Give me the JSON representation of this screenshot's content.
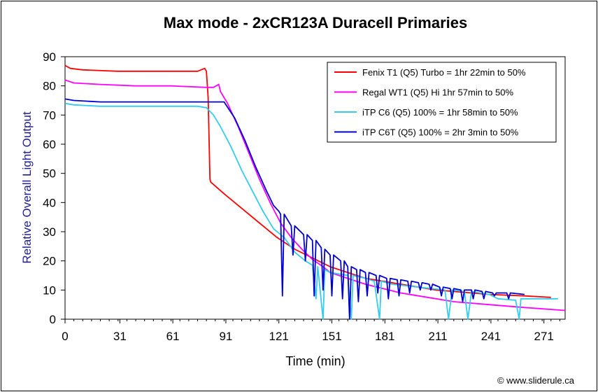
{
  "chart_data": {
    "type": "line",
    "title": "Max mode - 2xCR123A Duracell Primaries",
    "xlabel": "Time (min)",
    "ylabel": "Relative Overall Light Output",
    "xlim": [
      0,
      283
    ],
    "ylim": [
      0,
      90
    ],
    "x_ticks": [
      0,
      31,
      61,
      91,
      121,
      151,
      181,
      211,
      241,
      271
    ],
    "y_ticks": [
      0,
      10,
      20,
      30,
      40,
      50,
      60,
      70,
      80,
      90
    ],
    "grid": false,
    "legend_position": "top-right",
    "credit": "© www.sliderule.ca",
    "series": [
      {
        "name": "Fenix T1 (Q5) Turbo = 1hr 22min to 50%",
        "color": "#ff0000",
        "points": [
          [
            0,
            87
          ],
          [
            3,
            86
          ],
          [
            10,
            85.5
          ],
          [
            30,
            85
          ],
          [
            60,
            85
          ],
          [
            75,
            85
          ],
          [
            79,
            86
          ],
          [
            80,
            85
          ],
          [
            81,
            76
          ],
          [
            82,
            48
          ],
          [
            82.5,
            47
          ],
          [
            90,
            43
          ],
          [
            100,
            38
          ],
          [
            110,
            33
          ],
          [
            120,
            28
          ],
          [
            130,
            24
          ],
          [
            140,
            21
          ],
          [
            150,
            18
          ],
          [
            160,
            16
          ],
          [
            170,
            14
          ],
          [
            180,
            13
          ],
          [
            190,
            12
          ],
          [
            200,
            11
          ],
          [
            210,
            10
          ],
          [
            220,
            9.5
          ],
          [
            240,
            8.5
          ],
          [
            260,
            8
          ],
          [
            275,
            7.5
          ]
        ]
      },
      {
        "name": "Regal WT1 (Q5) Hi  1hr 57min to 50%",
        "color": "#ff00ff",
        "points": [
          [
            0,
            82
          ],
          [
            5,
            81
          ],
          [
            20,
            80.5
          ],
          [
            40,
            80
          ],
          [
            60,
            80
          ],
          [
            80,
            79.5
          ],
          [
            84,
            79.5
          ],
          [
            87,
            80.5
          ],
          [
            88,
            78
          ],
          [
            92,
            74
          ],
          [
            98,
            66
          ],
          [
            104,
            57
          ],
          [
            110,
            48
          ],
          [
            116,
            40
          ],
          [
            122,
            33
          ],
          [
            128,
            28
          ],
          [
            134,
            24
          ],
          [
            140,
            20.5
          ],
          [
            146,
            18
          ],
          [
            150,
            16
          ],
          [
            160,
            14
          ],
          [
            170,
            12
          ],
          [
            180,
            10.5
          ],
          [
            190,
            9
          ],
          [
            200,
            8
          ],
          [
            210,
            7
          ],
          [
            220,
            6
          ],
          [
            240,
            5
          ],
          [
            260,
            4
          ],
          [
            283,
            3
          ]
        ]
      },
      {
        "name": "iTP C6 (Q5) 100% = 1hr 58min to 50%",
        "color": "#33ccee",
        "points": [
          [
            0,
            74
          ],
          [
            5,
            73.5
          ],
          [
            20,
            73
          ],
          [
            40,
            73
          ],
          [
            60,
            73
          ],
          [
            75,
            73
          ],
          [
            80,
            72.5
          ],
          [
            84,
            70
          ],
          [
            88,
            66
          ],
          [
            94,
            59
          ],
          [
            100,
            51
          ],
          [
            106,
            44
          ],
          [
            112,
            37
          ],
          [
            118,
            31
          ],
          [
            124,
            28
          ],
          [
            130,
            23
          ],
          [
            136,
            20
          ],
          [
            140,
            18.5
          ],
          [
            142,
            7
          ],
          [
            143,
            18
          ],
          [
            146,
            0
          ],
          [
            147,
            17
          ],
          [
            150,
            16
          ],
          [
            160,
            15
          ],
          [
            162,
            0
          ],
          [
            163,
            15
          ],
          [
            170,
            14
          ],
          [
            175,
            13
          ],
          [
            178,
            0
          ],
          [
            179,
            13
          ],
          [
            185,
            12
          ],
          [
            200,
            11
          ],
          [
            215,
            10
          ],
          [
            217,
            0
          ],
          [
            219,
            10
          ],
          [
            226,
            9.5
          ],
          [
            228,
            0
          ],
          [
            230,
            9.5
          ],
          [
            240,
            8.5
          ],
          [
            245,
            7
          ],
          [
            255,
            6.5
          ],
          [
            257,
            0
          ],
          [
            258,
            7
          ],
          [
            270,
            7
          ],
          [
            279,
            7
          ]
        ]
      },
      {
        "name": "iTP C6T (Q5) 100% = 2hr 3min to 50%",
        "color": "#0000cc",
        "points": [
          [
            0,
            75.5
          ],
          [
            5,
            75
          ],
          [
            20,
            74.5
          ],
          [
            40,
            74.5
          ],
          [
            60,
            74.5
          ],
          [
            80,
            74.5
          ],
          [
            90,
            74.5
          ],
          [
            96,
            69
          ],
          [
            102,
            61
          ],
          [
            108,
            52
          ],
          [
            114,
            44
          ],
          [
            118,
            39
          ],
          [
            121,
            37
          ],
          [
            122,
            36
          ],
          [
            123,
            8
          ],
          [
            124,
            36
          ],
          [
            128,
            32
          ],
          [
            129,
            22
          ],
          [
            130,
            32
          ],
          [
            135,
            29
          ],
          [
            136,
            20
          ],
          [
            137,
            29
          ],
          [
            140,
            27
          ],
          [
            141,
            8
          ],
          [
            142,
            27
          ],
          [
            145,
            24.5
          ],
          [
            146,
            10
          ],
          [
            147,
            24
          ],
          [
            150,
            22
          ],
          [
            151,
            8
          ],
          [
            152,
            22
          ],
          [
            156,
            20
          ],
          [
            157,
            7
          ],
          [
            158,
            20
          ],
          [
            160,
            18
          ],
          [
            161,
            0
          ],
          [
            162,
            18
          ],
          [
            165,
            17
          ],
          [
            166,
            6
          ],
          [
            167,
            17
          ],
          [
            170,
            16
          ],
          [
            171,
            8
          ],
          [
            172,
            16
          ],
          [
            176,
            15
          ],
          [
            177,
            9
          ],
          [
            178,
            15
          ],
          [
            182,
            14
          ],
          [
            183,
            7
          ],
          [
            184,
            14
          ],
          [
            188,
            13.5
          ],
          [
            189,
            8
          ],
          [
            190,
            13.5
          ],
          [
            194,
            13
          ],
          [
            195,
            9
          ],
          [
            196,
            13
          ],
          [
            200,
            12.5
          ],
          [
            201,
            10
          ],
          [
            202,
            12.5
          ],
          [
            206,
            12
          ],
          [
            207,
            10
          ],
          [
            208,
            12
          ],
          [
            212,
            11
          ],
          [
            213,
            8
          ],
          [
            214,
            11
          ],
          [
            218,
            10.5
          ],
          [
            219,
            7
          ],
          [
            220,
            10.5
          ],
          [
            224,
            10
          ],
          [
            225,
            6
          ],
          [
            226,
            10
          ],
          [
            230,
            10
          ],
          [
            231,
            7
          ],
          [
            232,
            10
          ],
          [
            236,
            9.5
          ],
          [
            237,
            7
          ],
          [
            238,
            9.5
          ],
          [
            242,
            9
          ],
          [
            243,
            8
          ],
          [
            244,
            9
          ],
          [
            250,
            9
          ],
          [
            251,
            7
          ],
          [
            252,
            9
          ],
          [
            260,
            8.5
          ]
        ]
      }
    ]
  }
}
